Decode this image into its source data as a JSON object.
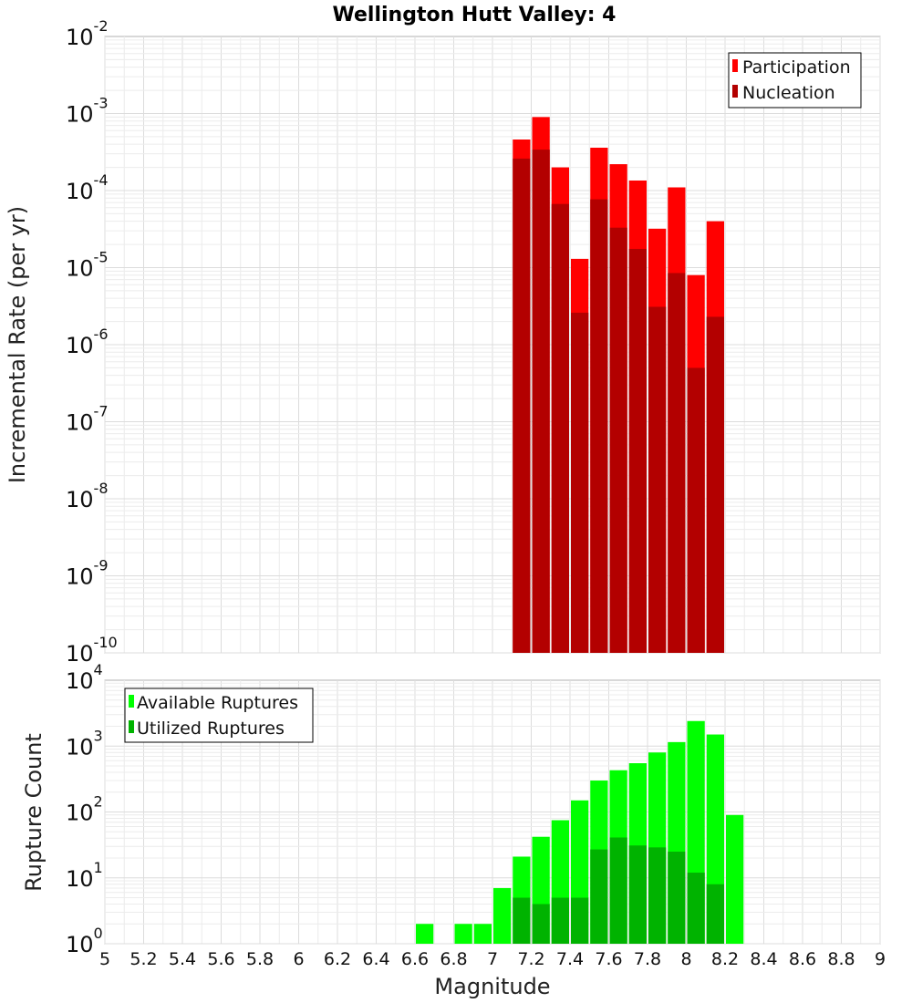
{
  "title": "Wellington Hutt Valley: 4",
  "chart_data": [
    {
      "type": "bar",
      "name": "rate",
      "ylabel": "Incremental Rate (per yr)",
      "xlabel": "",
      "y_scale": "log",
      "ylim_exp": [
        -10,
        -2
      ],
      "xlim": [
        5,
        9
      ],
      "colors": {
        "Participation": "#ff0000",
        "Nucleation": "#b30000"
      },
      "legend_position": "top-right",
      "legend": [
        "Participation",
        "Nucleation"
      ],
      "x": [
        7.15,
        7.25,
        7.35,
        7.45,
        7.55,
        7.65,
        7.75,
        7.85,
        7.95,
        8.05,
        8.15
      ],
      "series": [
        {
          "name": "Participation",
          "values": [
            0.00046,
            0.0009,
            0.0002,
            1.3e-05,
            0.00036,
            0.00022,
            0.000135,
            3.2e-05,
            0.00011,
            8e-06,
            4e-05
          ]
        },
        {
          "name": "Nucleation",
          "values": [
            0.00026,
            0.00034,
            6.7e-05,
            2.6e-06,
            7.7e-05,
            3.3e-05,
            1.75e-05,
            3.1e-06,
            8.5e-06,
            5e-07,
            2.3e-06
          ]
        }
      ]
    },
    {
      "type": "bar",
      "name": "count",
      "ylabel": "Rupture Count",
      "xlabel": "Magnitude",
      "y_scale": "log",
      "ylim_exp": [
        0,
        4
      ],
      "xlim": [
        5,
        9
      ],
      "colors": {
        "Available Ruptures": "#00ff00",
        "Utilized Ruptures": "#00b300"
      },
      "legend_position": "top-left",
      "legend": [
        "Available Ruptures",
        "Utilized Ruptures"
      ],
      "x": [
        6.65,
        6.85,
        6.95,
        7.05,
        7.15,
        7.25,
        7.35,
        7.45,
        7.55,
        7.65,
        7.75,
        7.85,
        7.95,
        8.05,
        8.15,
        8.25
      ],
      "series": [
        {
          "name": "Available Ruptures",
          "values": [
            2,
            2,
            2,
            7,
            21,
            42,
            75,
            150,
            300,
            430,
            550,
            800,
            1150,
            2400,
            1500,
            90
          ]
        },
        {
          "name": "Utilized Ruptures",
          "values": [
            null,
            null,
            null,
            null,
            5,
            4,
            5,
            5,
            27,
            41,
            31,
            29,
            25,
            12,
            8,
            null
          ]
        }
      ]
    }
  ],
  "x_ticks": [
    "5",
    "5.2",
    "5.4",
    "5.6",
    "5.8",
    "6",
    "6.2",
    "6.4",
    "6.6",
    "6.8",
    "7",
    "7.2",
    "7.4",
    "7.6",
    "7.8",
    "8",
    "8.2",
    "8.4",
    "8.6",
    "8.8",
    "9"
  ]
}
